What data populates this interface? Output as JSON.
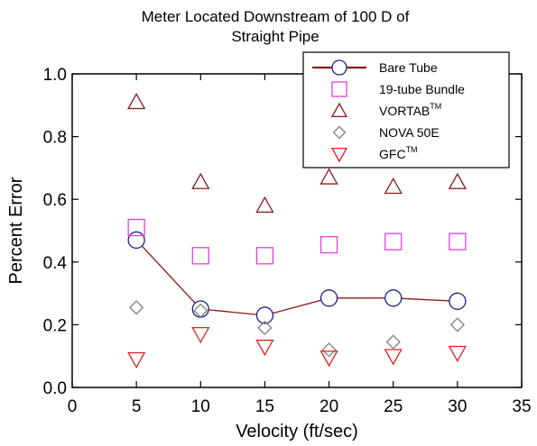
{
  "chart_data": {
    "type": "scatter",
    "title_lines": [
      "Meter Located Downstream of 100 D of",
      "Straight Pipe"
    ],
    "xlabel": "Velocity (ft/sec)",
    "ylabel": "Percent Error",
    "xlim": [
      0,
      35
    ],
    "ylim": [
      0,
      1.0
    ],
    "xticks": [
      "0",
      "5",
      "10",
      "15",
      "20",
      "25",
      "30",
      "35"
    ],
    "yticks": [
      "0.0",
      "0.2",
      "0.4",
      "0.6",
      "0.8",
      "1.0"
    ],
    "grid": false,
    "legend_position": "top-right",
    "series": [
      {
        "name": "Bare Tube",
        "marker": "circle",
        "line": true,
        "color": "#8b1a1a",
        "marker_color": "#1a237e",
        "x": [
          5,
          10,
          15,
          20,
          25,
          30
        ],
        "y": [
          0.47,
          0.25,
          0.23,
          0.285,
          0.285,
          0.275
        ]
      },
      {
        "name": "19-tube Bundle",
        "marker": "square",
        "line": false,
        "color": "#e040e0",
        "x": [
          5,
          10,
          15,
          20,
          25,
          30
        ],
        "y": [
          0.51,
          0.42,
          0.42,
          0.455,
          0.465,
          0.465
        ]
      },
      {
        "name": "VORTAB",
        "name_sup": "TM",
        "marker": "triangle-up",
        "line": false,
        "color": "#8b1a1a",
        "x": [
          5,
          10,
          15,
          20,
          25,
          30
        ],
        "y": [
          0.91,
          0.655,
          0.58,
          0.67,
          0.64,
          0.655
        ]
      },
      {
        "name": "NOVA 50E",
        "marker": "diamond",
        "line": false,
        "color": "#808080",
        "x": [
          5,
          10,
          15,
          20,
          25,
          30
        ],
        "y": [
          0.255,
          0.245,
          0.19,
          0.12,
          0.145,
          0.2
        ]
      },
      {
        "name": "GFC",
        "name_sup": "TM",
        "marker": "triangle-down",
        "line": false,
        "color": "#e02020",
        "x": [
          5,
          10,
          15,
          20,
          25,
          30
        ],
        "y": [
          0.09,
          0.17,
          0.13,
          0.095,
          0.1,
          0.11
        ]
      }
    ]
  }
}
